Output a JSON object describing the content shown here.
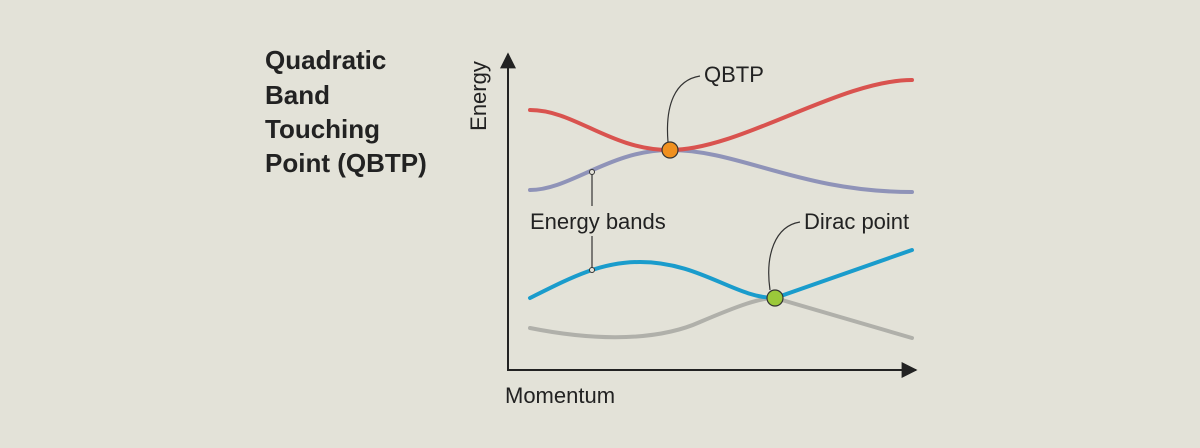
{
  "title": {
    "lines": [
      "Quadratic",
      "Band",
      "Touching",
      "Point (QBTP)"
    ]
  },
  "axes": {
    "y_label": "Energy",
    "x_label": "Momentum"
  },
  "annotations": {
    "qbtp": "QBTP",
    "bands": "Energy bands",
    "dirac": "Dirac point"
  }
}
